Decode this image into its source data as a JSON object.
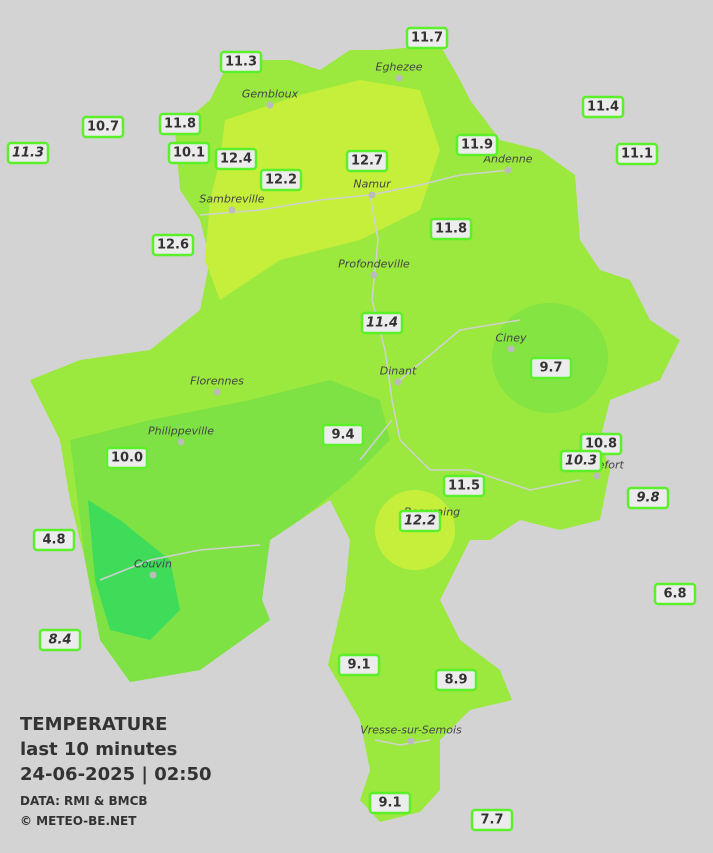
{
  "stations": [
    {
      "label": "11.7"
    },
    {
      "label": "11.3"
    },
    {
      "label": "11.4"
    },
    {
      "label": "10.7"
    },
    {
      "label": "11.8"
    },
    {
      "label": "11.9"
    },
    {
      "label": "11.3",
      "italic": true
    },
    {
      "label": "10.1"
    },
    {
      "label": "12.4"
    },
    {
      "label": "12.7"
    },
    {
      "label": "11.1"
    },
    {
      "label": "12.2"
    },
    {
      "label": "11.8"
    },
    {
      "label": "12.6"
    },
    {
      "label": "11.4",
      "italic": true
    },
    {
      "label": "9.7"
    },
    {
      "label": "9.4"
    },
    {
      "label": "10.8"
    },
    {
      "label": "10.3",
      "italic": true
    },
    {
      "label": "10.0"
    },
    {
      "label": "9.8",
      "italic": true
    },
    {
      "label": "11.5"
    },
    {
      "label": "12.2",
      "italic": true
    },
    {
      "label": "4.8"
    },
    {
      "label": "6.8"
    },
    {
      "label": "8.4",
      "italic": true
    },
    {
      "label": "9.1"
    },
    {
      "label": "8.9"
    },
    {
      "label": "9.1"
    },
    {
      "label": "7.7"
    }
  ],
  "cities": [
    "Eghezee",
    "Gembloux",
    "Andenne",
    "Namur",
    "Sambreville",
    "Profondeville",
    "Ciney",
    "Dinant",
    "Florennes",
    "Philippeville",
    "Rochefort",
    "Beauraing",
    "Couvin",
    "Vresse-sur-Semois"
  ],
  "legend": {
    "title": "TEMPERATURE",
    "subtitle": "last 10 minutes",
    "datetime": "24-06-2025  |  02:50",
    "source": "DATA: RMI & BMCB",
    "credit": "© METEO-BE.NET"
  }
}
